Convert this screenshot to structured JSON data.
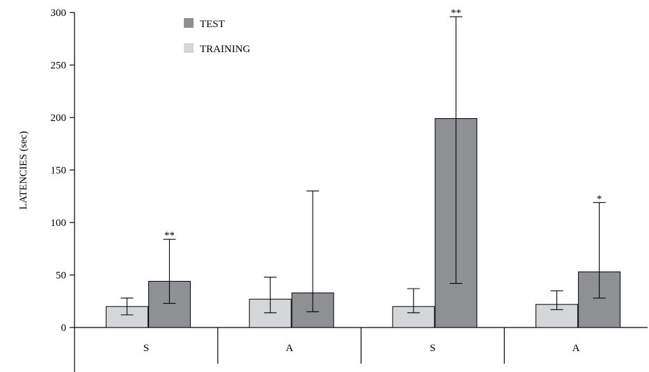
{
  "chart_data": {
    "type": "bar",
    "ylabel": "LATENCIES (sec)",
    "ylim": [
      0,
      300
    ],
    "yticks": [
      0,
      50,
      100,
      150,
      200,
      250,
      300
    ],
    "categories": [
      "S",
      "A",
      "S",
      "A"
    ],
    "legend_position": "top-left",
    "series": [
      {
        "name": "TEST",
        "color": "#8f9093",
        "values": [
          44,
          33,
          199,
          53
        ],
        "error_low": [
          23,
          15,
          42,
          28
        ],
        "error_high": [
          84,
          130,
          296,
          119
        ],
        "significance": [
          "**",
          "",
          "**",
          "*"
        ]
      },
      {
        "name": "TRAINING",
        "color": "#d5d6d8",
        "values": [
          20,
          27,
          20,
          22
        ],
        "error_low": [
          12,
          14,
          14,
          17
        ],
        "error_high": [
          28,
          48,
          37,
          35
        ],
        "significance": [
          "",
          "",
          "",
          ""
        ]
      }
    ]
  }
}
